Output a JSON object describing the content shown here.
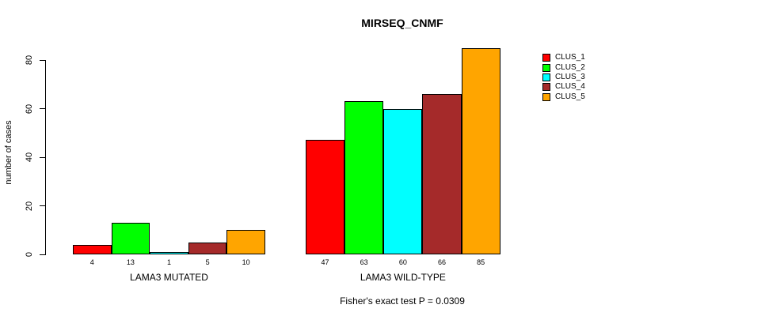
{
  "title": "MIRSEQ_CNMF",
  "footnote": "Fisher's exact test P = 0.0309",
  "y_axis": {
    "label": "number of cases",
    "ticks": [
      0,
      20,
      40,
      60,
      80
    ]
  },
  "chart_data": {
    "type": "bar",
    "title": "MIRSEQ_CNMF",
    "ylabel": "number of cases",
    "xlabel": "",
    "ylim": [
      0,
      85
    ],
    "yticks": [
      0,
      20,
      40,
      60,
      80
    ],
    "grid": false,
    "legend_position": "top-right",
    "categories": [
      "LAMA3 MUTATED",
      "LAMA3 WILD-TYPE"
    ],
    "series": [
      {
        "name": "CLUS_1",
        "color": "#FF0000",
        "values": [
          4,
          47
        ]
      },
      {
        "name": "CLUS_2",
        "color": "#00FF00",
        "values": [
          13,
          63
        ]
      },
      {
        "name": "CLUS_3",
        "color": "#00FFFF",
        "values": [
          1,
          60
        ]
      },
      {
        "name": "CLUS_4",
        "color": "#A52A2A",
        "values": [
          5,
          66
        ]
      },
      {
        "name": "CLUS_5",
        "color": "#FFA500",
        "values": [
          10,
          85
        ]
      }
    ],
    "bar_value_labels": {
      "LAMA3 MUTATED": [
        4,
        13,
        1,
        5,
        10
      ],
      "LAMA3 WILD-TYPE": [
        47,
        63,
        60,
        66,
        85
      ]
    },
    "annotation": "Fisher's exact test P = 0.0309"
  }
}
